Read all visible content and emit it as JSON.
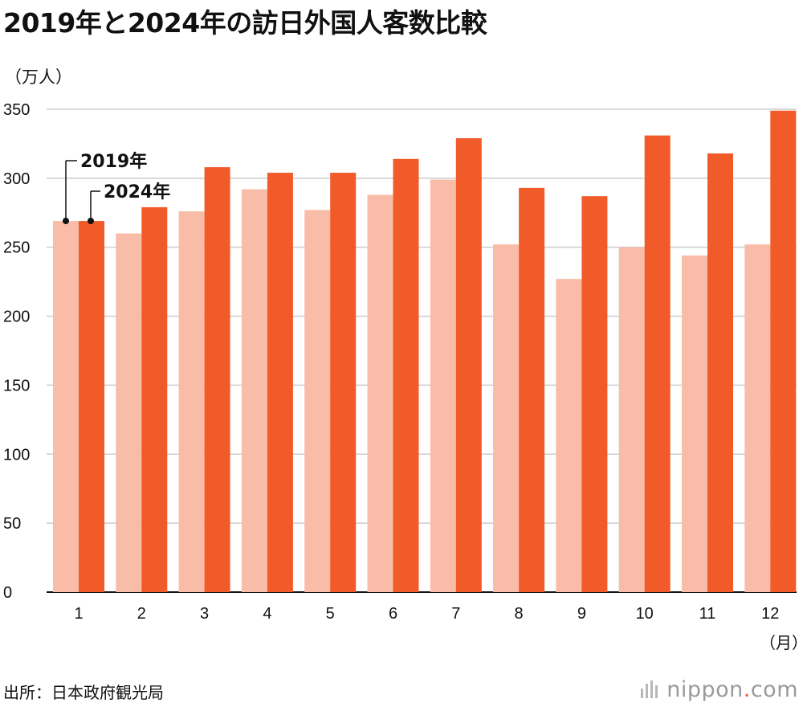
{
  "title": "2019年と2024年の訪日外国人客数比較",
  "unit_label": "（万人）",
  "month_unit": "（月）",
  "source": "出所：日本政府観光局",
  "logo": {
    "main": "nippon",
    "dot": ".",
    "suffix": "com"
  },
  "colors": {
    "series_2019": "#f8bca8",
    "series_2024": "#f15a29",
    "grid": "#cccccc",
    "axis": "#111111"
  },
  "chart_data": {
    "type": "bar",
    "title": "2019年と2024年の訪日外国人客数比較",
    "ylabel": "（万人）",
    "xlabel": "（月）",
    "categories": [
      "1",
      "2",
      "3",
      "4",
      "5",
      "6",
      "7",
      "8",
      "9",
      "10",
      "11",
      "12"
    ],
    "ylim": [
      0,
      350
    ],
    "yticks": [
      0,
      50,
      100,
      150,
      200,
      250,
      300,
      350
    ],
    "grid": true,
    "legend_placement": "top-left",
    "series": [
      {
        "name": "2019年",
        "values": [
          269,
          260,
          276,
          292,
          277,
          288,
          299,
          252,
          227,
          250,
          244,
          252
        ]
      },
      {
        "name": "2024年",
        "values": [
          269,
          279,
          308,
          304,
          304,
          314,
          329,
          293,
          287,
          331,
          318,
          349
        ]
      }
    ]
  }
}
